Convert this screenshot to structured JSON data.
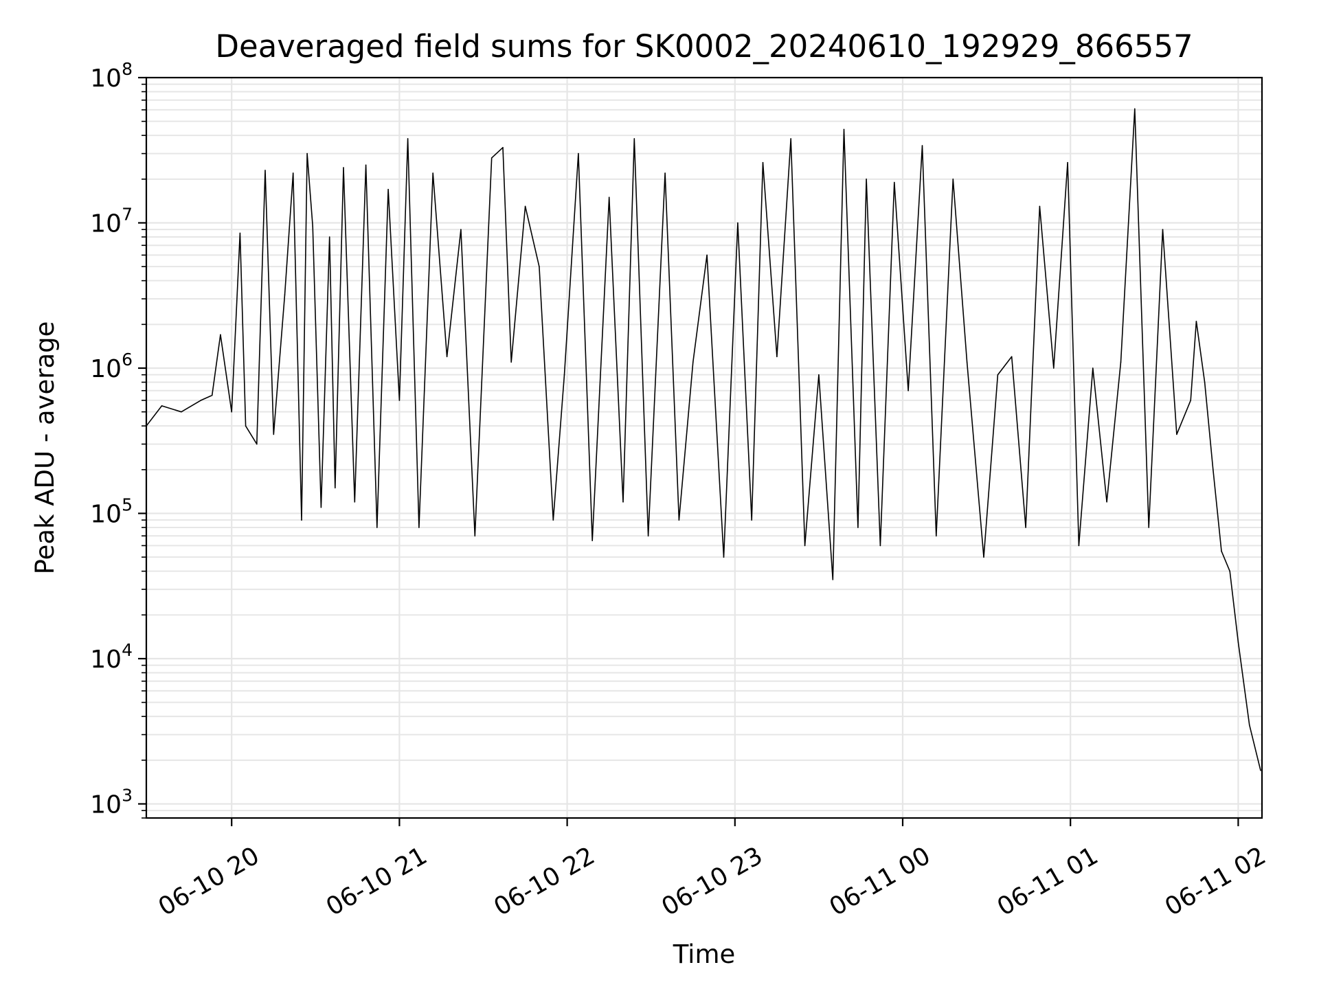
{
  "chart_data": {
    "type": "line",
    "title": "Deaveraged field sums for SK0002_20240610_192929_866557",
    "xlabel": "Time",
    "ylabel": "Peak ADU - average",
    "yscale": "log",
    "ylim": [
      800,
      100000000
    ],
    "xlim": [
      "2024-06-10 19:29:29",
      "2024-06-11 02:08:30"
    ],
    "grid": true,
    "line_color": "#000000",
    "grid_color": "#e6e6e6",
    "x_ticks": [
      {
        "value": "2024-06-10 20:00",
        "label": "06-10 20"
      },
      {
        "value": "2024-06-10 21:00",
        "label": "06-10 21"
      },
      {
        "value": "2024-06-10 22:00",
        "label": "06-10 22"
      },
      {
        "value": "2024-06-10 23:00",
        "label": "06-10 23"
      },
      {
        "value": "2024-06-11 00:00",
        "label": "06-11 00"
      },
      {
        "value": "2024-06-11 01:00",
        "label": "06-11 01"
      },
      {
        "value": "2024-06-11 02:00",
        "label": "06-11 02"
      }
    ],
    "y_ticks": [
      {
        "value": 1000,
        "base": "10",
        "exp": "3"
      },
      {
        "value": 10000,
        "base": "10",
        "exp": "4"
      },
      {
        "value": 100000,
        "base": "10",
        "exp": "5"
      },
      {
        "value": 1000000,
        "base": "10",
        "exp": "6"
      },
      {
        "value": 10000000,
        "base": "10",
        "exp": "7"
      },
      {
        "value": 100000000,
        "base": "10",
        "exp": "8"
      }
    ],
    "series": [
      {
        "name": "",
        "x": [
          "2024-06-10 19:29:29",
          "2024-06-10 19:35",
          "2024-06-10 19:42",
          "2024-06-10 19:49",
          "2024-06-10 19:53",
          "2024-06-10 19:56",
          "2024-06-10 20:00",
          "2024-06-10 20:03",
          "2024-06-10 20:05",
          "2024-06-10 20:09",
          "2024-06-10 20:12",
          "2024-06-10 20:15",
          "2024-06-10 20:19",
          "2024-06-10 20:22",
          "2024-06-10 20:25",
          "2024-06-10 20:27",
          "2024-06-10 20:29",
          "2024-06-10 20:32",
          "2024-06-10 20:35",
          "2024-06-10 20:37",
          "2024-06-10 20:40",
          "2024-06-10 20:44",
          "2024-06-10 20:48",
          "2024-06-10 20:52",
          "2024-06-10 20:56",
          "2024-06-10 21:00",
          "2024-06-10 21:03",
          "2024-06-10 21:07",
          "2024-06-10 21:12",
          "2024-06-10 21:17",
          "2024-06-10 21:22",
          "2024-06-10 21:27",
          "2024-06-10 21:33",
          "2024-06-10 21:37",
          "2024-06-10 21:40",
          "2024-06-10 21:45",
          "2024-06-10 21:50",
          "2024-06-10 21:55",
          "2024-06-10 21:59",
          "2024-06-10 22:04",
          "2024-06-10 22:09",
          "2024-06-10 22:15",
          "2024-06-10 22:20",
          "2024-06-10 22:24",
          "2024-06-10 22:29",
          "2024-06-10 22:35",
          "2024-06-10 22:40",
          "2024-06-10 22:45",
          "2024-06-10 22:50",
          "2024-06-10 22:56",
          "2024-06-10 23:01",
          "2024-06-10 23:06",
          "2024-06-10 23:10",
          "2024-06-10 23:15",
          "2024-06-10 23:20",
          "2024-06-10 23:25",
          "2024-06-10 23:30",
          "2024-06-10 23:35",
          "2024-06-10 23:39",
          "2024-06-10 23:44",
          "2024-06-10 23:47",
          "2024-06-10 23:52",
          "2024-06-10 23:57",
          "2024-06-11 00:02",
          "2024-06-11 00:07",
          "2024-06-11 00:12",
          "2024-06-11 00:18",
          "2024-06-11 00:23",
          "2024-06-11 00:29",
          "2024-06-11 00:34",
          "2024-06-11 00:39",
          "2024-06-11 00:44",
          "2024-06-11 00:49",
          "2024-06-11 00:54",
          "2024-06-11 00:59",
          "2024-06-11 01:03",
          "2024-06-11 01:08",
          "2024-06-11 01:13",
          "2024-06-11 01:18",
          "2024-06-11 01:23",
          "2024-06-11 01:28",
          "2024-06-11 01:33",
          "2024-06-11 01:38",
          "2024-06-11 01:43",
          "2024-06-11 01:45",
          "2024-06-11 01:48",
          "2024-06-11 01:51",
          "2024-06-11 01:54",
          "2024-06-11 01:57",
          "2024-06-11 02:00",
          "2024-06-11 02:04",
          "2024-06-11 02:08"
        ],
        "y": [
          400000,
          550000,
          500000,
          600000,
          650000,
          1700000,
          500000,
          8500000,
          400000,
          300000,
          23000000,
          350000,
          3200000,
          22000000,
          90000,
          30000000,
          9500000,
          110000,
          8000000,
          150000,
          24000000,
          120000,
          25000000,
          80000,
          17000000,
          600000,
          38000000,
          80000,
          22000000,
          1200000,
          9000000,
          70000,
          28000000,
          33000000,
          1100000,
          13000000,
          5000000,
          90000,
          900000,
          30000000,
          65000,
          15000000,
          120000,
          38000000,
          70000,
          22000000,
          90000,
          1100000,
          6000000,
          50000,
          10000000,
          90000,
          26000000,
          1200000,
          38000000,
          60000,
          900000,
          35000,
          44000000,
          80000,
          20000000,
          60000,
          19000000,
          700000,
          34000000,
          70000,
          20000000,
          1100000,
          50000,
          900000,
          1200000,
          80000,
          13000000,
          1000000,
          26000000,
          60000,
          1000000,
          120000,
          1100000,
          61000000,
          80000,
          9000000,
          350000,
          600000,
          2100000,
          800000,
          200000,
          55000,
          40000,
          13000,
          3500,
          1700
        ]
      }
    ]
  }
}
